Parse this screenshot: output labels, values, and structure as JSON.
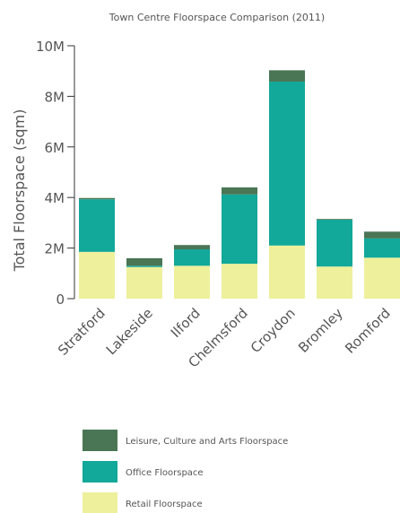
{
  "chart_data": {
    "type": "bar",
    "stacked": true,
    "title": "Town Centre Floorspace Comparison (2011)",
    "xlabel": "",
    "ylabel": "Total Floorspace (sqm)",
    "ylim": [
      0,
      10000000
    ],
    "yticks": [
      {
        "value": 0,
        "label": "0"
      },
      {
        "value": 2000000,
        "label": "2M"
      },
      {
        "value": 4000000,
        "label": "4M"
      },
      {
        "value": 6000000,
        "label": "6M"
      },
      {
        "value": 8000000,
        "label": "8M"
      },
      {
        "value": 10000000,
        "label": "10M"
      }
    ],
    "categories": [
      "Stratford",
      "Lakeside",
      "Ilford",
      "Chelmsford",
      "Croydon",
      "Bromley",
      "Romford"
    ],
    "series": [
      {
        "name": "Retail Floorspace",
        "color": "#eef09c",
        "values": [
          1850000,
          1250000,
          1300000,
          1380000,
          2100000,
          1270000,
          1620000
        ]
      },
      {
        "name": "Office Floorspace",
        "color": "#12a89a",
        "values": [
          2080000,
          50000,
          650000,
          2740000,
          6480000,
          1850000,
          760000
        ]
      },
      {
        "name": "Leisure, Culture and Arts Floorspace",
        "color": "#4a7655",
        "values": [
          50000,
          300000,
          170000,
          280000,
          450000,
          30000,
          270000
        ]
      }
    ],
    "legend_position": "bottom",
    "grid": false
  }
}
